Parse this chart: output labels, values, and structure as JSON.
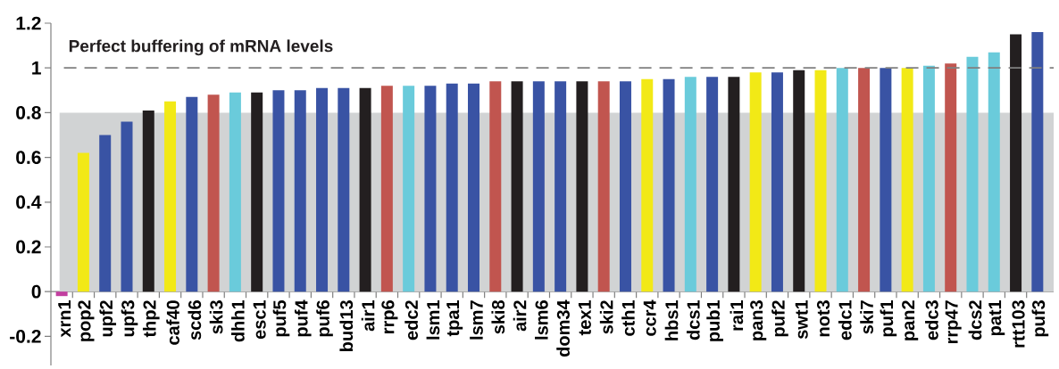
{
  "chart_data": {
    "type": "bar",
    "categories": [
      "xrn1",
      "pop2",
      "upf2",
      "upf3",
      "thp2",
      "caf40",
      "scd6",
      "ski3",
      "dhh1",
      "esc1",
      "puf5",
      "puf4",
      "puf6",
      "bud13",
      "air1",
      "rrp6",
      "edc2",
      "lsm1",
      "tpa1",
      "lsm7",
      "ski8",
      "air2",
      "lsm6",
      "dom34",
      "tex1",
      "ski2",
      "cth1",
      "ccr4",
      "hbs1",
      "dcs1",
      "pub1",
      "rai1",
      "pan3",
      "puf2",
      "swt1",
      "not3",
      "edc1",
      "ski7",
      "puf1",
      "pan2",
      "edc3",
      "rrp47",
      "dcs2",
      "pat1",
      "rtt103",
      "puf3"
    ],
    "values": [
      -0.02,
      0.62,
      0.7,
      0.76,
      0.81,
      0.85,
      0.87,
      0.88,
      0.89,
      0.89,
      0.9,
      0.9,
      0.91,
      0.91,
      0.91,
      0.92,
      0.92,
      0.92,
      0.93,
      0.93,
      0.94,
      0.94,
      0.94,
      0.94,
      0.94,
      0.94,
      0.94,
      0.95,
      0.95,
      0.96,
      0.96,
      0.96,
      0.98,
      0.98,
      0.99,
      0.99,
      1.0,
      1.0,
      1.0,
      1.0,
      1.01,
      1.02,
      1.05,
      1.07,
      1.15,
      1.16
    ],
    "colors": [
      "#c23fa0",
      "#f2e916",
      "#3953a4",
      "#3953a4",
      "#231f20",
      "#f2e916",
      "#3953a4",
      "#c1554f",
      "#6acbdb",
      "#231f20",
      "#3953a4",
      "#3953a4",
      "#3953a4",
      "#3953a4",
      "#231f20",
      "#c1554f",
      "#6acbdb",
      "#3953a4",
      "#3953a4",
      "#3953a4",
      "#c1554f",
      "#231f20",
      "#3953a4",
      "#3953a4",
      "#231f20",
      "#c1554f",
      "#3953a4",
      "#f2e916",
      "#3953a4",
      "#6acbdb",
      "#3953a4",
      "#231f20",
      "#f2e916",
      "#3953a4",
      "#231f20",
      "#f2e916",
      "#6acbdb",
      "#c1554f",
      "#3953a4",
      "#f2e916",
      "#6acbdb",
      "#c1554f",
      "#6acbdb",
      "#6acbdb",
      "#231f20",
      "#3953a4"
    ],
    "ylim": [
      -0.33,
      1.2
    ],
    "yticks": [
      -0.2,
      0,
      0.2,
      0.4,
      0.6,
      0.8,
      1,
      1.2
    ],
    "ref_lines": [
      {
        "axis": "y",
        "value": 1,
        "label": "Perfect buffering of mRNA levels",
        "color": "#808080",
        "line_style": "dashed"
      }
    ],
    "bands": [
      {
        "axis": "y",
        "from": 0,
        "to": 0.8,
        "color": "#d1d3d4"
      }
    ]
  }
}
